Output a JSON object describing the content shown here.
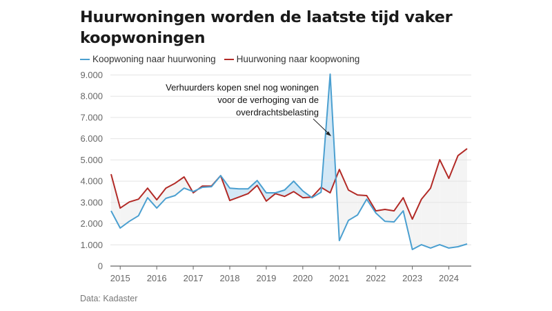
{
  "chart_data": {
    "type": "line",
    "title": "Huurwoningen worden de laatste tijd vaker koopwoningen",
    "xlabel": "",
    "ylabel": "",
    "ylim": [
      0,
      9000
    ],
    "yticks": [
      0,
      1000,
      2000,
      3000,
      4000,
      5000,
      6000,
      7000,
      8000,
      9000
    ],
    "ytick_labels": [
      "0",
      "1.000",
      "2.000",
      "3.000",
      "4.000",
      "5.000",
      "6.000",
      "7.000",
      "8.000",
      "9.000"
    ],
    "xtick_labels": [
      "2015",
      "2016",
      "2017",
      "2018",
      "2019",
      "2020",
      "2021",
      "2022",
      "2023",
      "2024"
    ],
    "x_start": "2014 Q4",
    "x_interval": "quarter",
    "grid": true,
    "legend_position": "top-left",
    "series": [
      {
        "name": "Koopwoning naar huurwoning",
        "color": "#4a9fd0",
        "values": [
          2600,
          1790,
          2110,
          2370,
          3220,
          2730,
          3190,
          3320,
          3670,
          3510,
          3710,
          3740,
          4260,
          3670,
          3640,
          3640,
          4030,
          3450,
          3450,
          3580,
          4000,
          3540,
          3220,
          3480,
          9040,
          1200,
          2150,
          2410,
          3150,
          2500,
          2110,
          2080,
          2600,
          780,
          1010,
          850,
          1010,
          850,
          910,
          1040
        ]
      },
      {
        "name": "Huurwoning naar koopwoning",
        "color": "#b22a26",
        "values": [
          4330,
          2730,
          3020,
          3150,
          3670,
          3120,
          3670,
          3900,
          4200,
          3450,
          3770,
          3770,
          4260,
          3090,
          3250,
          3410,
          3800,
          3060,
          3410,
          3280,
          3510,
          3220,
          3250,
          3710,
          3450,
          4550,
          3580,
          3350,
          3320,
          2600,
          2670,
          2600,
          3220,
          2210,
          3150,
          3670,
          5010,
          4130,
          5200,
          5530
        ]
      }
    ],
    "annotation": {
      "lines": [
        "Verhuurders kopen snel nog woningen",
        "voor de verhoging van de",
        "overdrachtsbelasting"
      ],
      "target_series": "Koopwoning naar huurwoning",
      "target_index": 24
    },
    "fill_colors": {
      "blue_above": "#d3e8f6",
      "red_above": "#f4f4f4"
    },
    "source": "Data: Kadaster"
  }
}
